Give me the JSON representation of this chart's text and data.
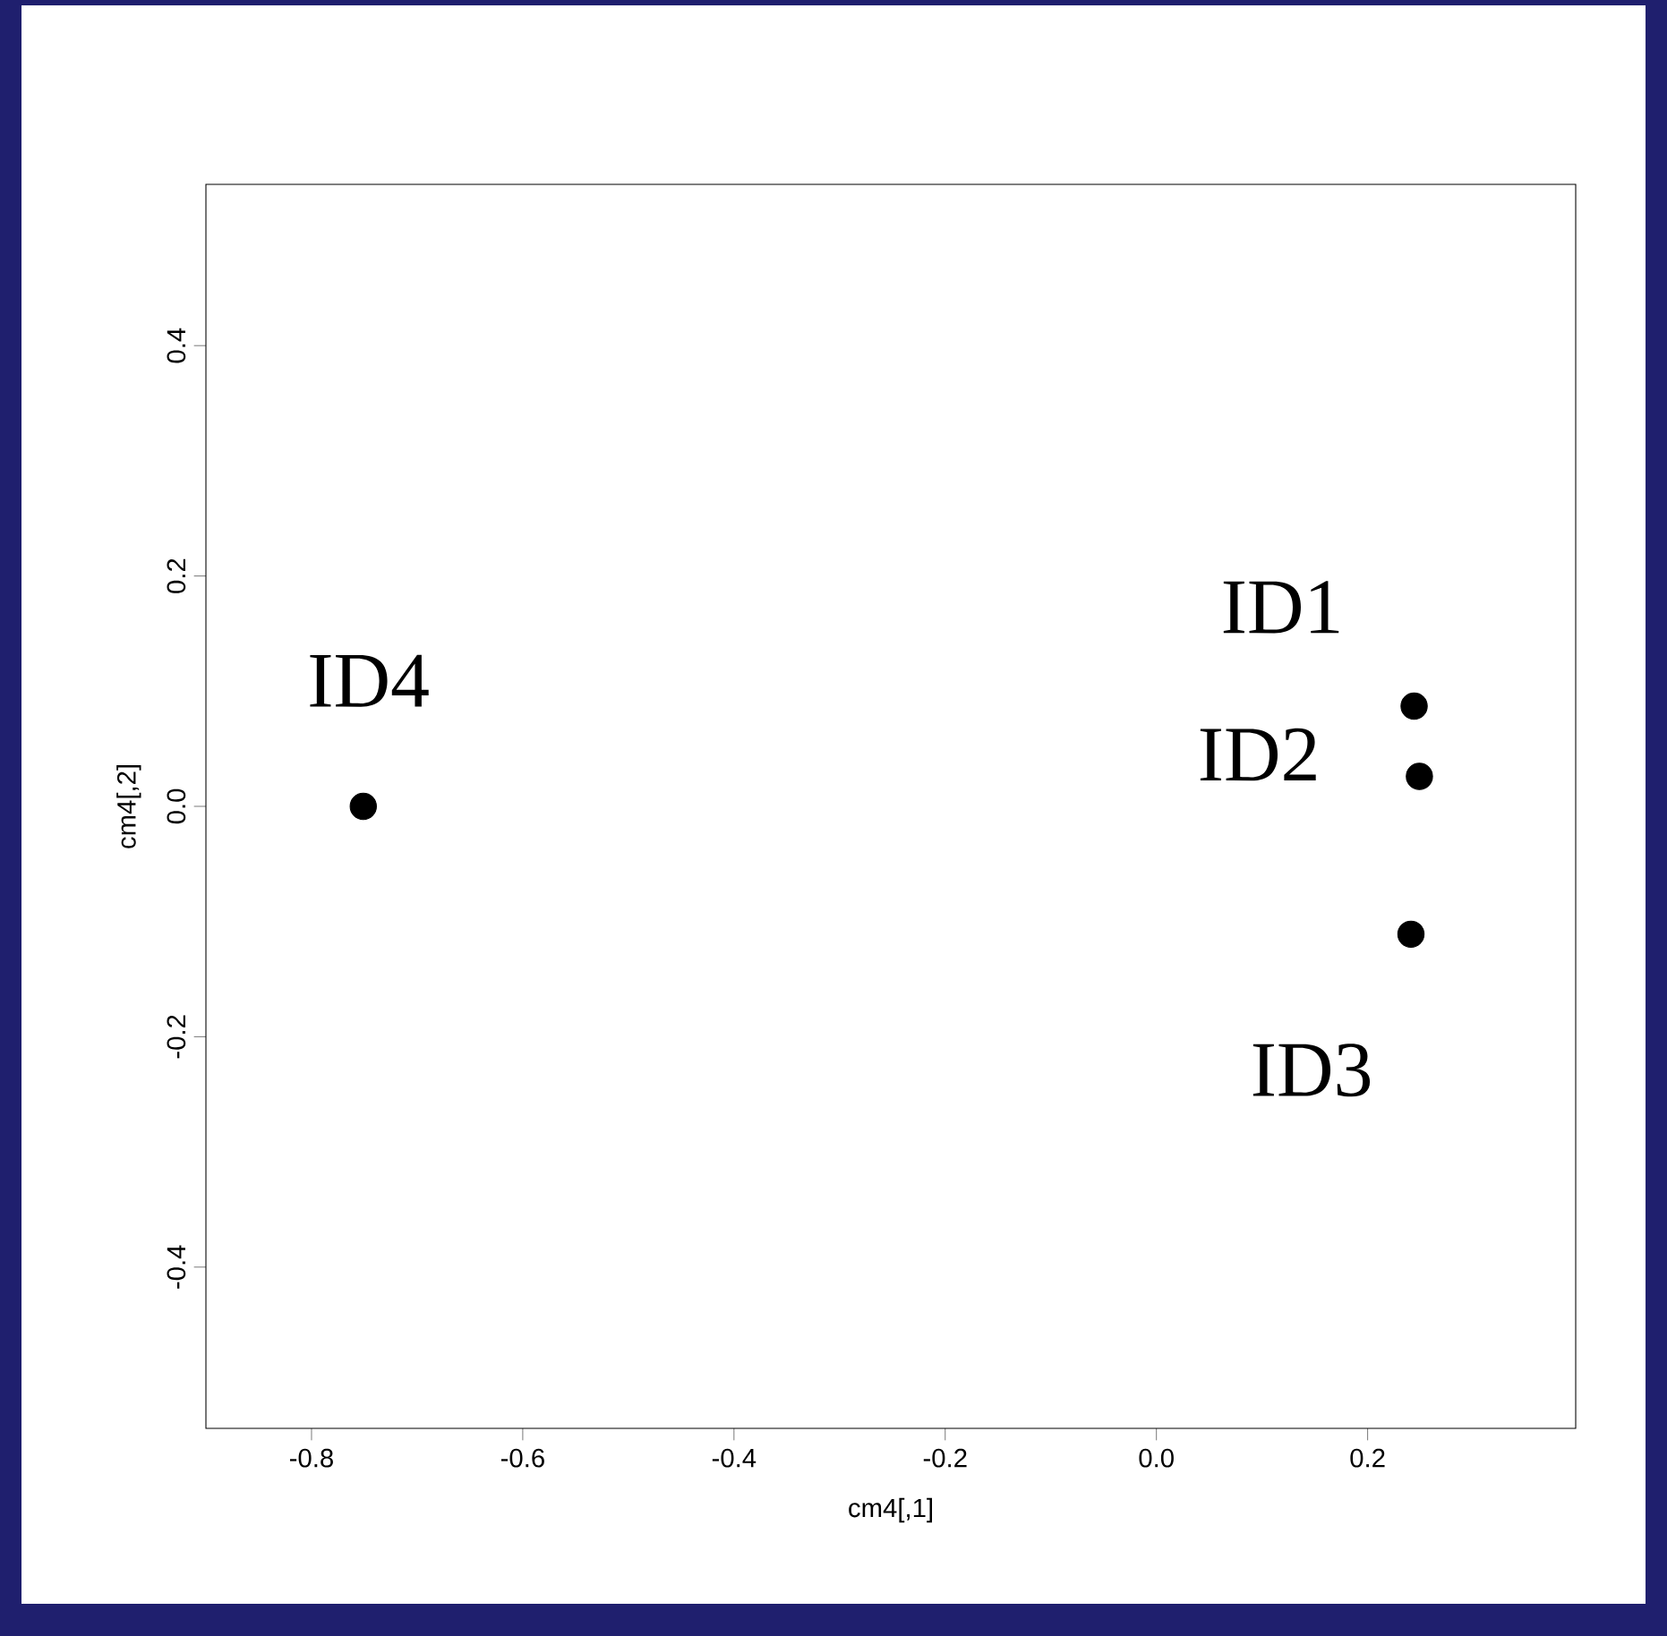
{
  "chart_data": {
    "type": "scatter",
    "xlabel": "cm4[,1]",
    "ylabel": "cm4[,2]",
    "x": [
      0.244,
      0.249,
      0.241,
      -0.751
    ],
    "values": [
      0.087,
      0.026,
      -0.111,
      0
    ],
    "color": "#000000",
    "marker": "circle",
    "grid": false,
    "xlim": [
      -0.9,
      0.397
    ],
    "ylim": [
      -0.54,
      0.54
    ],
    "xticks": [
      -0.8,
      -0.6,
      -0.4,
      -0.2,
      {
        "value": 0,
        "label": "0.0"
      },
      0.2
    ],
    "yticks": [
      -0.4,
      -0.2,
      {
        "value": 0,
        "label": "0.0"
      },
      0.2,
      0.4
    ],
    "annotations": [
      "ID1",
      "ID2",
      "ID3",
      "ID4"
    ]
  }
}
